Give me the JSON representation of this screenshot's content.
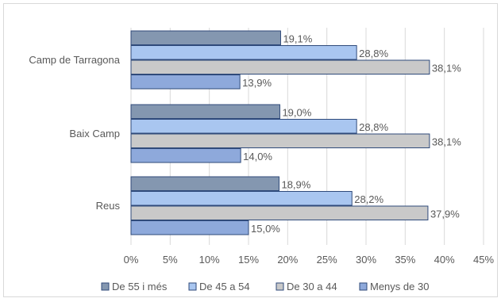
{
  "chart_data": {
    "type": "bar",
    "orientation": "horizontal",
    "categories": [
      "Camp de Tarragona",
      "Baix Camp",
      "Reus"
    ],
    "series": [
      {
        "name": "De 55 i més",
        "values": [
          19.1,
          19.0,
          18.9
        ],
        "labels": [
          "19,1%",
          "19,0%",
          "18,9%"
        ],
        "color": "#8497b0"
      },
      {
        "name": "De 45 a 54",
        "values": [
          28.8,
          28.8,
          28.2
        ],
        "labels": [
          "28,8%",
          "28,8%",
          "28,2%"
        ],
        "color": "#a9c6f0"
      },
      {
        "name": "De 30 a 44",
        "values": [
          38.1,
          38.1,
          37.9
        ],
        "labels": [
          "38,1%",
          "38,1%",
          "37,9%"
        ],
        "color": "#c9c9c9"
      },
      {
        "name": "Menys de 30",
        "values": [
          13.9,
          14.0,
          15.0
        ],
        "labels": [
          "13,9%",
          "14,0%",
          "15,0%"
        ],
        "color": "#8ea9db"
      }
    ],
    "xlim": [
      0,
      45
    ],
    "xticks": [
      0,
      5,
      10,
      15,
      20,
      25,
      30,
      35,
      40,
      45
    ],
    "xtick_labels": [
      "0%",
      "5%",
      "10%",
      "15%",
      "20%",
      "25%",
      "30%",
      "35%",
      "40%",
      "45%"
    ],
    "grid": true,
    "legend_position": "bottom",
    "title": "",
    "xlabel": "",
    "ylabel": ""
  },
  "colors": {
    "bar_border": "#2f4a7a",
    "grid": "#d9d9d9",
    "text": "#595959"
  }
}
